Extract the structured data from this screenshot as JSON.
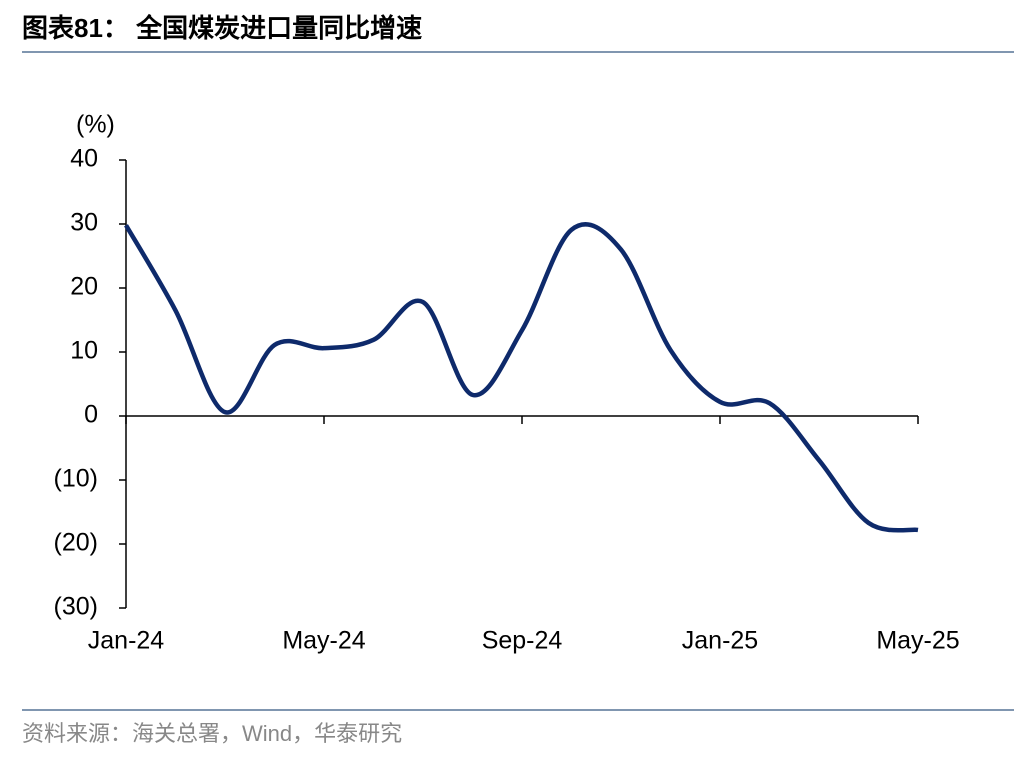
{
  "chart_data": {
    "type": "line",
    "title": "图表81：  全国煤炭进口量同比增速",
    "y_label": "(%)",
    "source": "资料来源：海关总署，Wind，华泰研究",
    "categories": [
      "Jan-24",
      null,
      null,
      null,
      "May-24",
      null,
      null,
      null,
      "Sep-24",
      null,
      null,
      null,
      "Jan-25",
      null,
      null,
      null,
      "May-25"
    ],
    "series": [
      {
        "name": "全国煤炭进口量同比增速",
        "color": "#0e2a6b",
        "values": [
          29.8,
          16.5,
          0.6,
          11.1,
          10.6,
          11.9,
          17.8,
          3.3,
          13.4,
          29.1,
          26.0,
          10.3,
          2.2,
          2.0,
          -6.9,
          -16.7,
          -17.8
        ]
      }
    ],
    "ylim": [
      -30,
      40
    ],
    "yticks": [
      {
        "value": -30,
        "label": "(30)"
      },
      {
        "value": -20,
        "label": "(20)"
      },
      {
        "value": -10,
        "label": "(10)"
      },
      0,
      10,
      20,
      30,
      40
    ]
  }
}
